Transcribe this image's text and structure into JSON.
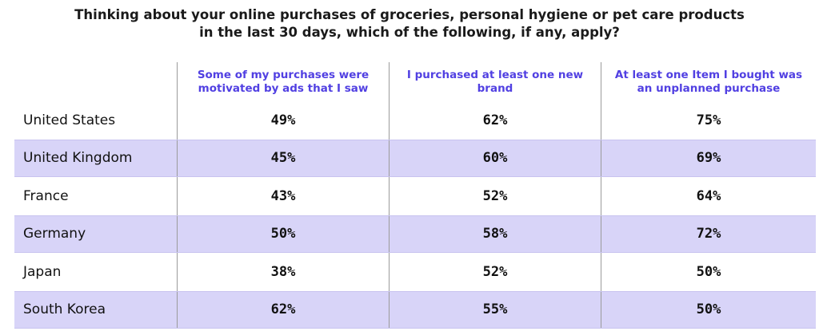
{
  "chart_data": {
    "type": "table",
    "title": "Thinking about your online purchases of groceries, personal hygiene or pet care products in the last 30 days, which of the following, if any, apply?",
    "title_lines": [
      "Thinking about your online purchases of groceries, personal hygiene or pet care products",
      "in the last 30 days, which of the following, if any, apply?"
    ],
    "columns": [
      "Some of my purchases were motivated by ads that I saw",
      "I purchased at least one new brand",
      "At least one Item I bought was an unplanned purchase"
    ],
    "rows": [
      {
        "country": "United States",
        "values": [
          "49%",
          "62%",
          "75%"
        ]
      },
      {
        "country": "United Kingdom",
        "values": [
          "45%",
          "60%",
          "69%"
        ]
      },
      {
        "country": "France",
        "values": [
          "43%",
          "52%",
          "64%"
        ]
      },
      {
        "country": "Germany",
        "values": [
          "50%",
          "58%",
          "72%"
        ]
      },
      {
        "country": "Japan",
        "values": [
          "38%",
          "52%",
          "50%"
        ]
      },
      {
        "country": "South Korea",
        "values": [
          "62%",
          "55%",
          "50%"
        ]
      }
    ],
    "colors": {
      "header_text": "#5140e2",
      "band": "#d8d4f8"
    }
  }
}
